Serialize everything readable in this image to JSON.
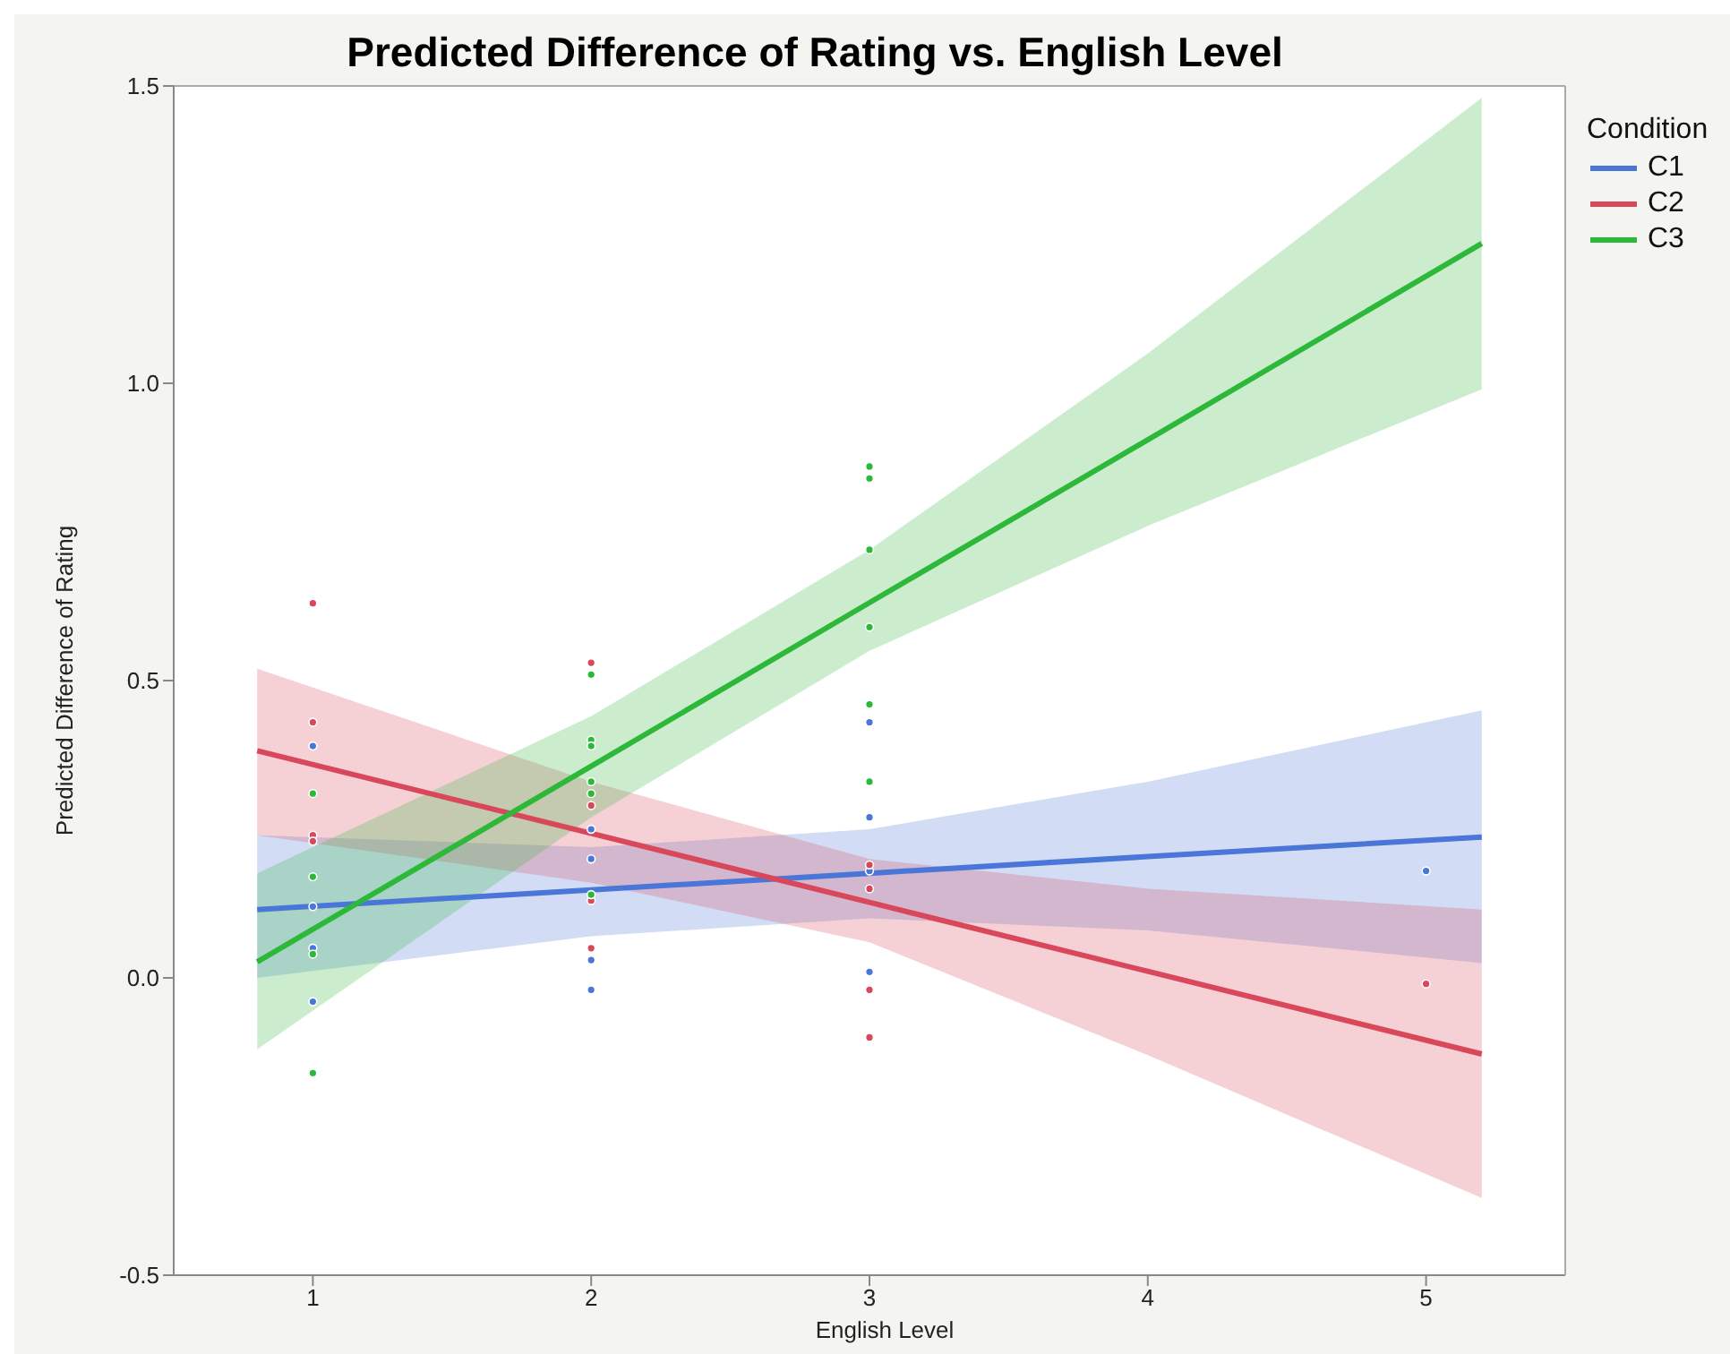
{
  "chart_data": {
    "type": "line",
    "title": "Predicted Difference of Rating vs. English Level",
    "xlabel": "English Level",
    "ylabel": "Predicted Difference of Rating",
    "legend_title": "Condition",
    "legend": "top right",
    "grid": false,
    "xlim": [
      0.5,
      5.5
    ],
    "xticks": [
      1,
      2,
      3,
      4,
      5
    ],
    "ylim": [
      -0.5,
      1.5
    ],
    "yticks": [
      {
        "value": -0.5,
        "label": "-0.5"
      },
      {
        "value": 0,
        "label": "0.0"
      },
      {
        "value": 0.5,
        "label": "0.5"
      },
      {
        "value": 1,
        "label": "1.0"
      },
      {
        "value": 1.5,
        "label": "1.5"
      }
    ],
    "series": [
      {
        "name": "C1",
        "color": "#4a76d8",
        "x": [
          0.8,
          2,
          3,
          4,
          5.2
        ],
        "values": [
          0.115,
          0.148,
          0.176,
          0.204,
          0.237
        ],
        "lower": [
          0.0,
          0.07,
          0.1,
          0.08,
          0.025
        ],
        "upper": [
          0.24,
          0.22,
          0.25,
          0.33,
          0.45
        ]
      },
      {
        "name": "C2",
        "color": "#d9475a",
        "x": [
          0.8,
          2,
          3,
          4,
          5.2
        ],
        "values": [
          0.382,
          0.243,
          0.127,
          0.011,
          -0.128
        ],
        "lower": [
          0.24,
          0.16,
          0.06,
          -0.13,
          -0.37
        ],
        "upper": [
          0.52,
          0.33,
          0.2,
          0.15,
          0.115
        ]
      },
      {
        "name": "C3",
        "color": "#2eb83a",
        "x": [
          0.8,
          2,
          3,
          4,
          5.2
        ],
        "values": [
          0.027,
          0.356,
          0.631,
          0.905,
          1.235
        ],
        "lower": [
          -0.12,
          0.27,
          0.55,
          0.76,
          0.99
        ],
        "upper": [
          0.176,
          0.44,
          0.72,
          1.05,
          1.48
        ]
      },
      {
        "type": "scatter",
        "marker": "circle",
        "color": "#4a76d8",
        "x": [
          1,
          1,
          1,
          1,
          2,
          2,
          2,
          2,
          3,
          3,
          3,
          3,
          5
        ],
        "values": [
          0.39,
          0.12,
          0.05,
          -0.04,
          0.25,
          0.2,
          0.03,
          -0.02,
          0.43,
          0.27,
          0.18,
          0.01,
          0.18
        ]
      },
      {
        "type": "scatter",
        "marker": "circle",
        "color": "#d9475a",
        "x": [
          1,
          1,
          1,
          1,
          2,
          2,
          2,
          2,
          3,
          3,
          3,
          3,
          5
        ],
        "values": [
          0.63,
          0.43,
          0.24,
          0.23,
          0.53,
          0.29,
          0.13,
          0.05,
          0.19,
          0.15,
          -0.02,
          -0.1,
          -0.01
        ]
      },
      {
        "type": "scatter",
        "marker": "circle",
        "color": "#2eb83a",
        "x": [
          1,
          1,
          1,
          1,
          2,
          2,
          2,
          2,
          2,
          2,
          3,
          3,
          3,
          3,
          3,
          3
        ],
        "values": [
          0.31,
          0.17,
          0.04,
          -0.16,
          0.51,
          0.4,
          0.39,
          0.33,
          0.31,
          0.14,
          0.86,
          0.84,
          0.72,
          0.59,
          0.46,
          0.33
        ]
      }
    ]
  }
}
